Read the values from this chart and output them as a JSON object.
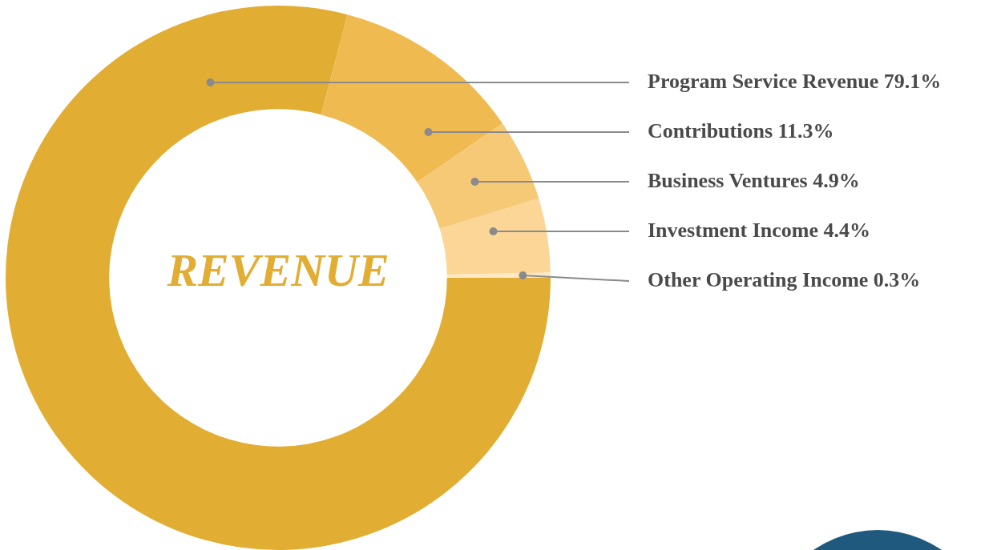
{
  "chart_data": {
    "type": "donut",
    "title": "REVENUE",
    "categories": [
      "Program Service Revenue",
      "Contributions",
      "Business Ventures",
      "Investment Income",
      "Other Operating Income"
    ],
    "values": [
      79.1,
      11.3,
      4.9,
      4.4,
      0.3
    ],
    "value_labels": [
      "79.1%",
      "11.3%",
      "4.9%",
      "4.4%",
      "0.3%"
    ],
    "colors": [
      "#e2ad33",
      "#efbb50",
      "#f6c977",
      "#fcd697",
      "#fde9c4"
    ],
    "legend": false
  }
}
